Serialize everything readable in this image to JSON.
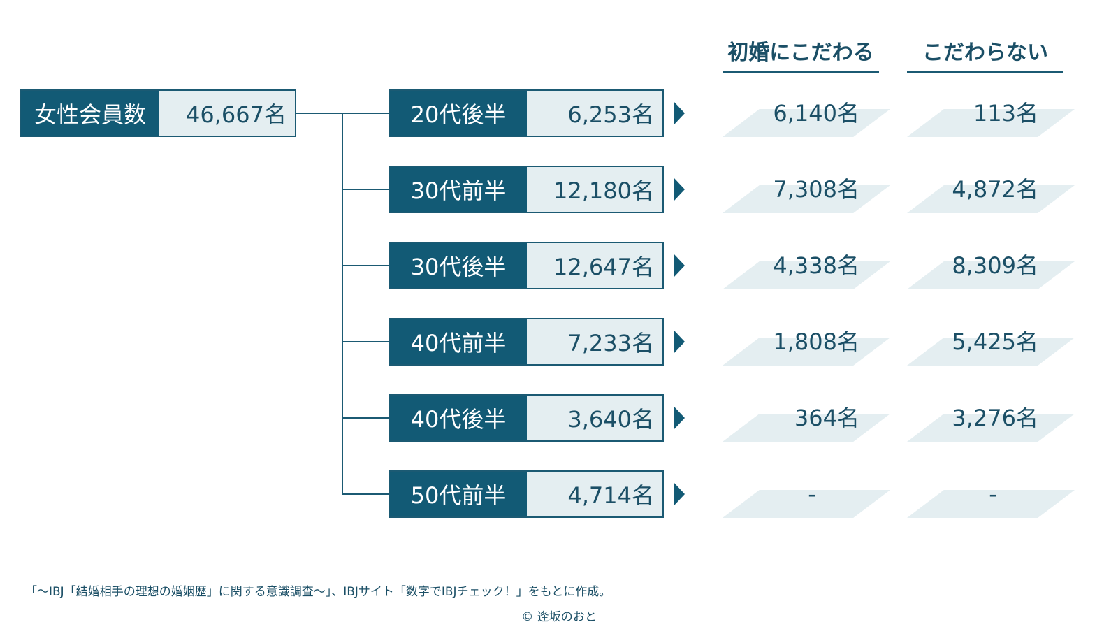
{
  "headers": {
    "col1": "初婚にこだわる",
    "col2": "こだわらない"
  },
  "total": {
    "label": "女性会員数",
    "value": "46,667名"
  },
  "rows": [
    {
      "label": "20代後半",
      "value": "6,253名",
      "first_marriage": "6,140名",
      "no_preference": "113名"
    },
    {
      "label": "30代前半",
      "value": "12,180名",
      "first_marriage": "7,308名",
      "no_preference": "4,872名"
    },
    {
      "label": "30代後半",
      "value": "12,647名",
      "first_marriage": "4,338名",
      "no_preference": "8,309名"
    },
    {
      "label": "40代前半",
      "value": "7,233名",
      "first_marriage": "1,808名",
      "no_preference": "5,425名"
    },
    {
      "label": "40代後半",
      "value": "3,640名",
      "first_marriage": "364名",
      "no_preference": "3,276名"
    },
    {
      "label": "50代前半",
      "value": "4,714名",
      "first_marriage": "-",
      "no_preference": "-"
    }
  ],
  "footer": {
    "source": "「～IBJ「結婚相手の理想の婚姻歴」に関する意識調査～」、IBJサイト「数字でIBJチェック！」をもとに作成。",
    "copyright": "© 逢坂のおと"
  },
  "colors": {
    "dark": "#125a75",
    "light": "#e4eef1"
  }
}
